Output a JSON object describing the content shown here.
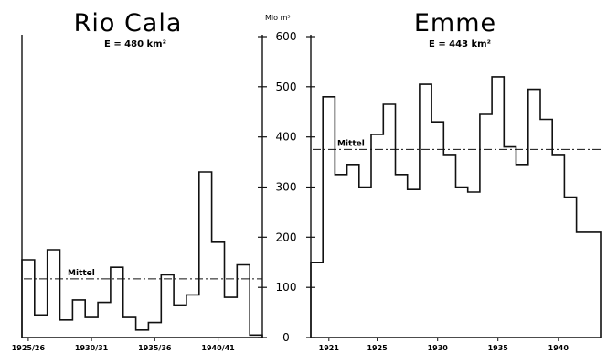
{
  "chart_data": [
    {
      "type": "step",
      "title": "Rio Cala",
      "subtitle": "E = 480 km²",
      "xlabel": "",
      "ylabel": "",
      "x_tick_labels": [
        "1925/26",
        "1930/31",
        "1935/36",
        "1940/41"
      ],
      "categories": [
        "1925/26",
        "1926/27",
        "1927/28",
        "1928/29",
        "1929/30",
        "1930/31",
        "1931/32",
        "1932/33",
        "1933/34",
        "1934/35",
        "1935/36",
        "1936/37",
        "1937/38",
        "1938/39",
        "1939/40",
        "1940/41",
        "1941/42",
        "1942/43",
        "1943/44"
      ],
      "values": [
        155,
        45,
        175,
        35,
        75,
        40,
        70,
        140,
        40,
        15,
        30,
        125,
        65,
        85,
        330,
        190,
        80,
        145,
        5
      ],
      "mean": 117,
      "mean_label": "Mittel",
      "ylim": [
        0,
        600
      ]
    },
    {
      "type": "step",
      "title": "Emme",
      "subtitle": "E = 443 km²",
      "xlabel": "",
      "ylabel": "Mio m³",
      "x_tick_labels": [
        "1921",
        "1925",
        "1930",
        "1935",
        "1940"
      ],
      "categories": [
        "1920",
        "1921",
        "1922",
        "1923",
        "1924",
        "1925",
        "1926",
        "1927",
        "1928",
        "1929",
        "1930",
        "1931",
        "1932",
        "1933",
        "1934",
        "1935",
        "1936",
        "1937",
        "1938",
        "1939",
        "1940",
        "1941",
        "1942",
        "1943"
      ],
      "values": [
        150,
        480,
        325,
        345,
        300,
        405,
        465,
        325,
        295,
        505,
        430,
        365,
        300,
        290,
        445,
        520,
        380,
        345,
        495,
        435,
        365,
        280,
        210,
        210
      ],
      "mean": 375,
      "mean_label": "Mittel",
      "ylim": [
        0,
        600
      ],
      "y_tick_labels": [
        "0",
        "100",
        "200",
        "300",
        "400",
        "500",
        "600"
      ]
    }
  ]
}
